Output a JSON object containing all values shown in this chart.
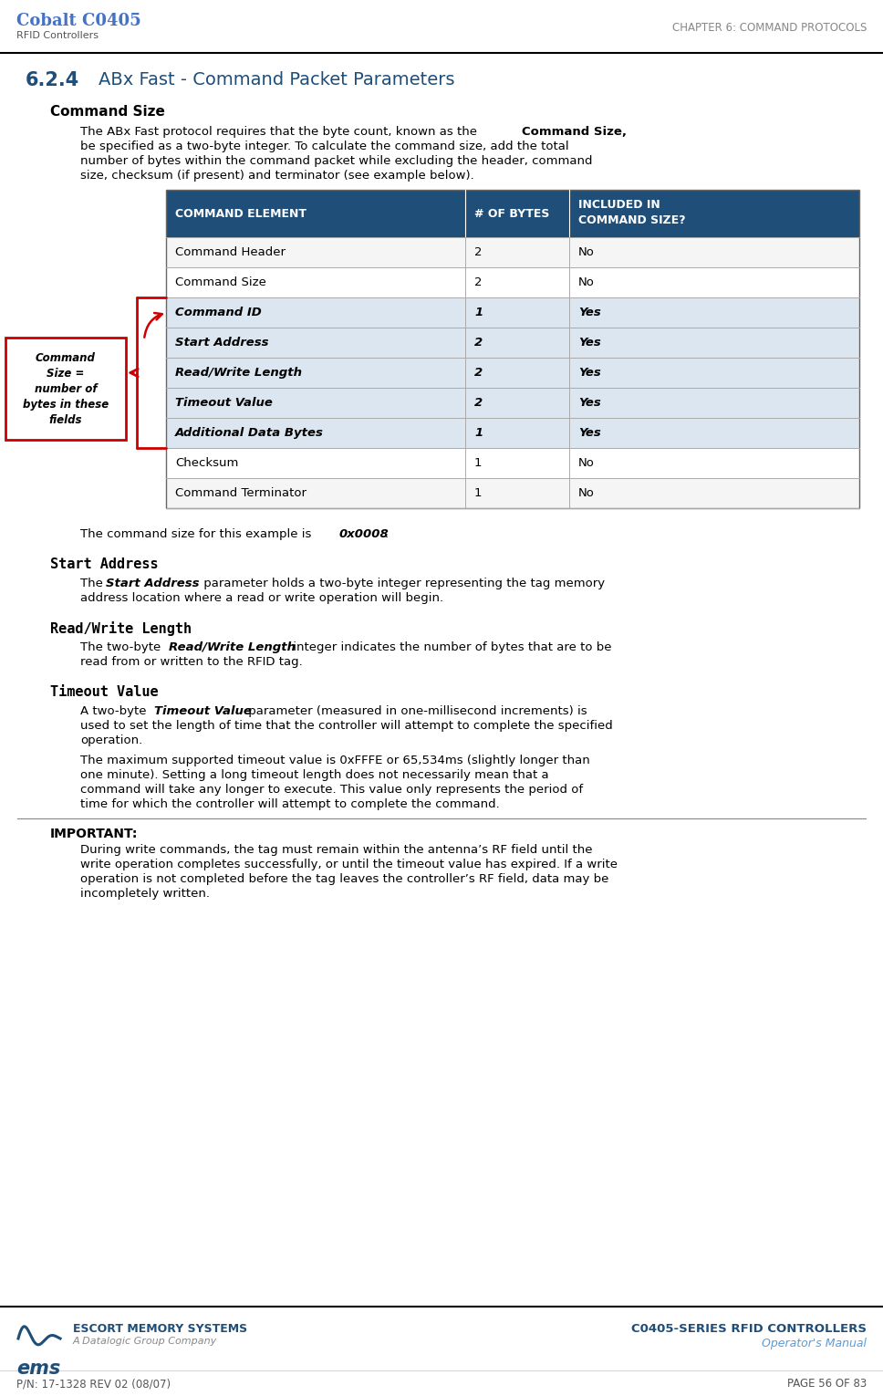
{
  "page_bg": "#ffffff",
  "cobalt_title": "Cobalt C0405",
  "cobalt_subtitle": "RFID Controllers",
  "chapter_header": "CHAPTER 6: COMMAND PROTOCOLS",
  "section_num": "6.2.4",
  "section_title": "ABx Fast - Command Packet Parameters",
  "section_color": "#1F4E79",
  "subsection1": "Command Size",
  "subsection2": "Start Address",
  "subsection3": "Read/Write Length",
  "subsection4": "Timeout Value",
  "table_header_bg": "#1F4E79",
  "table_col1": "COMMAND ELEMENT",
  "table_col2": "# OF BYTES",
  "table_col3": "INCLUDED IN\nCOMMAND SIZE?",
  "table_rows": [
    [
      "Command Header",
      "2",
      "No",
      false
    ],
    [
      "Command Size",
      "2",
      "No",
      false
    ],
    [
      "Command ID",
      "1",
      "Yes",
      true
    ],
    [
      "Start Address",
      "2",
      "Yes",
      true
    ],
    [
      "Read/Write Length",
      "2",
      "Yes",
      true
    ],
    [
      "Timeout Value",
      "2",
      "Yes",
      true
    ],
    [
      "Additional Data Bytes",
      "1",
      "Yes",
      true
    ],
    [
      "Checksum",
      "1",
      "No",
      false
    ],
    [
      "Command Terminator",
      "1",
      "No",
      false
    ]
  ],
  "cmd_size_box_color": "#cc0000",
  "important_label": "IMPORTANT:",
  "footer_company": "ESCORT MEMORY SYSTEMS",
  "footer_company2": "A Datalogic Group Company",
  "footer_product": "C0405-SERIES RFID CONTROLLERS",
  "footer_manual": "Operator's Manual",
  "footer_pn": "P/N: 17-1328 REV 02 (08/07)",
  "footer_page": "PAGE 56 OF 83",
  "dark_blue": "#1F4E79",
  "medium_blue": "#4472C4",
  "light_blue": "#5B9BD5"
}
